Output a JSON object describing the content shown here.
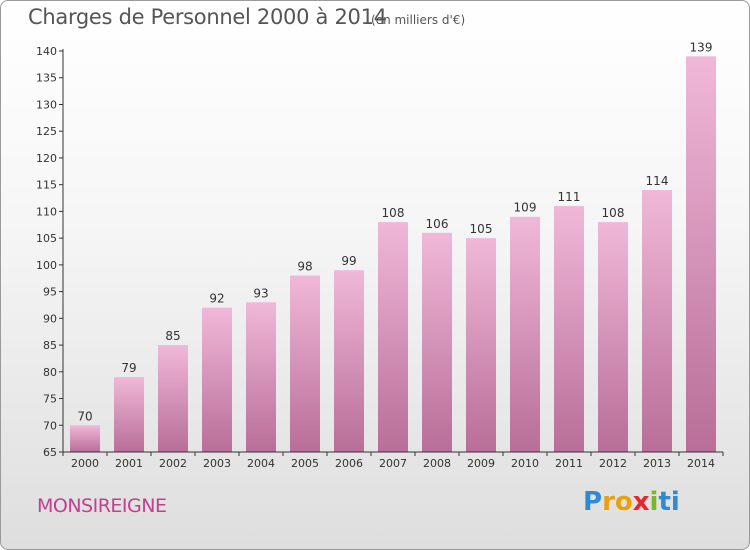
{
  "header": {
    "title": "Charges de Personnel 2000 à 2014",
    "subtitle": "(en milliers d'€)"
  },
  "footer": {
    "commune": "MONSIREIGNE",
    "logo": [
      "P",
      "r",
      "o",
      "x",
      "i",
      "ti"
    ]
  },
  "colors": {
    "bar_top": "#f0b8d8",
    "bar_bottom": "#b86e98",
    "commune": "#c2408f",
    "axis": "#333333"
  },
  "chart_data": {
    "type": "bar",
    "title": "Charges de Personnel 2000 à 2014",
    "subtitle": "(en milliers d'€)",
    "categories": [
      "2000",
      "2001",
      "2002",
      "2003",
      "2004",
      "2005",
      "2006",
      "2007",
      "2008",
      "2009",
      "2010",
      "2011",
      "2012",
      "2013",
      "2014"
    ],
    "values": [
      70,
      79,
      85,
      92,
      93,
      98,
      99,
      108,
      106,
      105,
      109,
      111,
      108,
      114,
      139
    ],
    "yticks": [
      65,
      70,
      75,
      80,
      85,
      90,
      95,
      100,
      105,
      110,
      115,
      120,
      125,
      130,
      135,
      140
    ],
    "ylim": [
      65,
      140
    ],
    "grid": false,
    "data_labels": true
  }
}
